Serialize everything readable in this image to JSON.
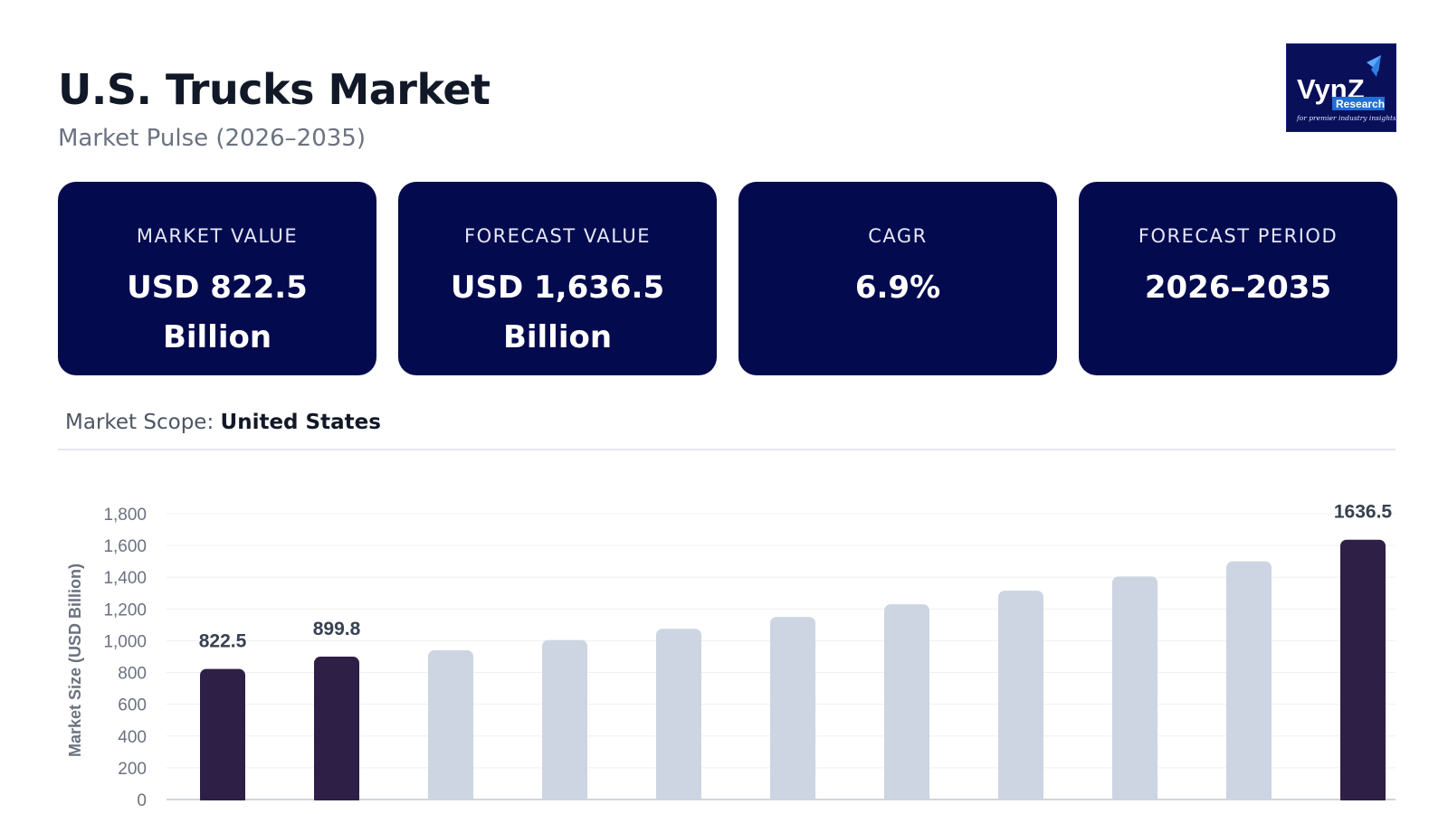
{
  "header": {
    "title": "U.S. Trucks Market",
    "subtitle": "Market Pulse (2026–2035)"
  },
  "logo": {
    "wordmark": "VynZ",
    "sub": "Research",
    "tagline": "for premier industry insights"
  },
  "cards": [
    {
      "label": "MARKET VALUE",
      "value": "USD 822.5 Billion"
    },
    {
      "label": "FORECAST VALUE",
      "value": "USD 1,636.5 Billion"
    },
    {
      "label": "CAGR",
      "value": "6.9%"
    },
    {
      "label": "FORECAST PERIOD",
      "value": "2026–2035"
    }
  ],
  "scope": {
    "label": "Market Scope:",
    "value": "United States"
  },
  "colors": {
    "card_bg": "#030a4e",
    "highlight_bar": "#2e1f47",
    "muted_bar": "#ccd5e1",
    "logo_bg": "#0a0f5a"
  },
  "chart_data": {
    "type": "bar",
    "ylabel": "Market Size (USD Billion)",
    "ylim": [
      0,
      1800
    ],
    "yticks": [
      0,
      200,
      400,
      600,
      800,
      1000,
      1200,
      1400,
      1600,
      1800
    ],
    "ytick_labels": [
      "0",
      "200",
      "400",
      "600",
      "800",
      "1,000",
      "1,200",
      "1,400",
      "1,600",
      "1,800"
    ],
    "grid": true,
    "values": [
      822.5,
      899.8,
      940,
      1005,
      1075,
      1150,
      1230,
      1315,
      1405,
      1500,
      1636.5
    ],
    "highlighted": [
      true,
      true,
      false,
      false,
      false,
      false,
      false,
      false,
      false,
      false,
      true
    ],
    "data_labels": [
      "822.5",
      "899.8",
      "",
      "",
      "",
      "",
      "",
      "",
      "",
      "",
      "1636.5"
    ]
  }
}
